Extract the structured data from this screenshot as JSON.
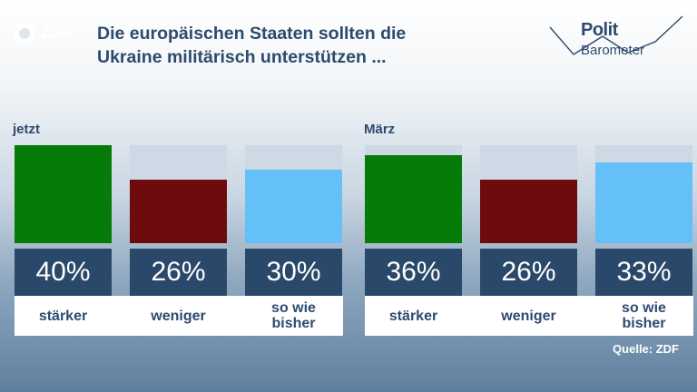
{
  "logo": {
    "text": "ZDF"
  },
  "title": {
    "line1": "Die europäischen Staaten sollten die",
    "line2": "Ukraine militärisch unterstützen ..."
  },
  "brand": {
    "line1": "Polit",
    "line2": "Barometer"
  },
  "source": "Quelle: ZDF",
  "colors": {
    "staerker": "#077b07",
    "weniger": "#6e0b0e",
    "sowiebisher": "#64c0f6",
    "value_box": "#2a4869",
    "title": "#2d4b6e"
  },
  "chart_data": [
    {
      "type": "bar",
      "group": "jetzt",
      "categories": [
        "stärker",
        "weniger",
        "so wie bisher"
      ],
      "values": [
        40,
        26,
        30
      ],
      "value_labels": [
        "40%",
        "26%",
        "30%"
      ],
      "unit": "%",
      "ylim": [
        0,
        40
      ],
      "grid": false
    },
    {
      "type": "bar",
      "group": "März",
      "categories": [
        "stärker",
        "weniger",
        "so wie bisher"
      ],
      "values": [
        36,
        26,
        33
      ],
      "value_labels": [
        "36%",
        "26%",
        "33%"
      ],
      "unit": "%",
      "ylim": [
        0,
        40
      ],
      "grid": false
    }
  ]
}
